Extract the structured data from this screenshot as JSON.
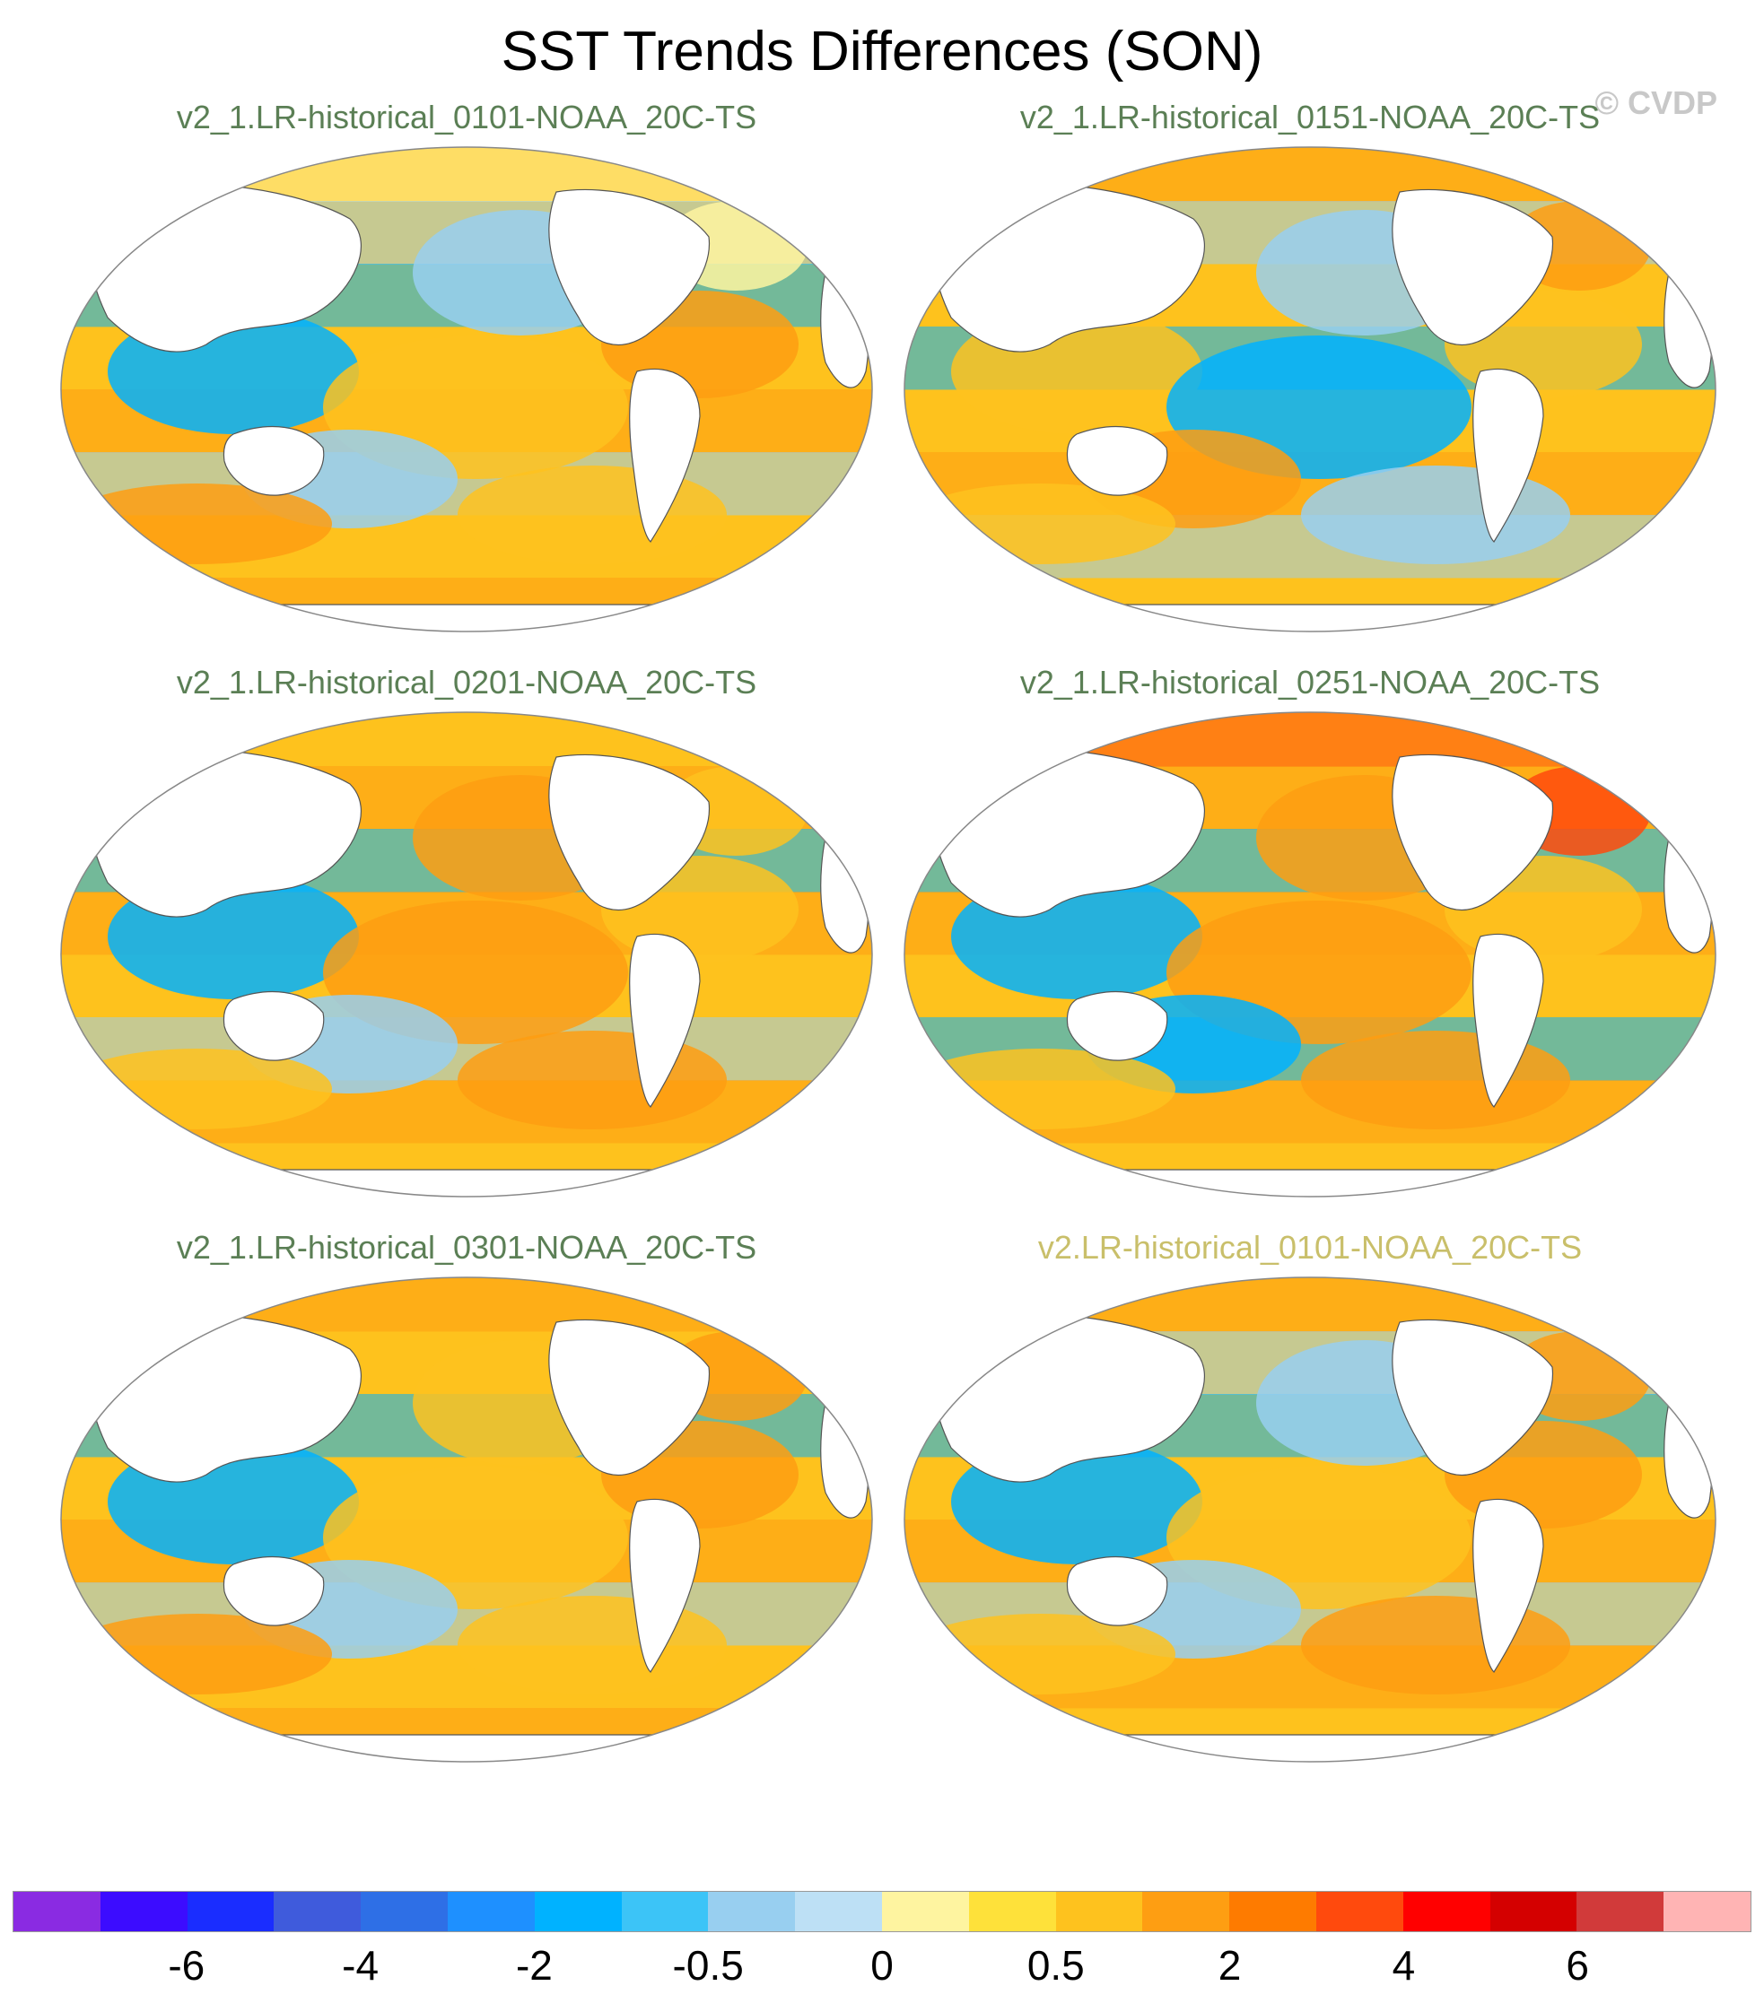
{
  "title": "SST Trends Differences (SON)",
  "credit": "© CVDP",
  "panels": [
    {
      "label": "v2_1.LR-historical_0101-NOAA_20C-TS",
      "label_color": "#5b7f55",
      "pattern": [
        0.4,
        -0.5,
        -2,
        0.5,
        2,
        -0.5,
        0.5,
        2
      ]
    },
    {
      "label": "v2_1.LR-historical_0151-NOAA_20C-TS",
      "label_color": "#5b7f55",
      "pattern": [
        2,
        -0.5,
        0.5,
        -2,
        0.5,
        2,
        -0.5,
        0.5
      ]
    },
    {
      "label": "v2_1.LR-historical_0201-NOAA_20C-TS",
      "label_color": "#5b7f55",
      "pattern": [
        0.5,
        2,
        -2,
        2,
        0.5,
        -0.5,
        2,
        0.5
      ]
    },
    {
      "label": "v2_1.LR-historical_0251-NOAA_20C-TS",
      "label_color": "#5b7f55",
      "pattern": [
        4,
        2,
        -2,
        2,
        0.5,
        -2,
        2,
        0.5
      ]
    },
    {
      "label": "v2_1.LR-historical_0301-NOAA_20C-TS",
      "label_color": "#5b7f55",
      "pattern": [
        2,
        0.5,
        -2,
        0.5,
        2,
        -0.5,
        0.5,
        2
      ]
    },
    {
      "label": "v2.LR-historical_0101-NOAA_20C-TS",
      "label_color": "#c9bf6a",
      "pattern": [
        2,
        -0.5,
        -2,
        0.5,
        2,
        -0.5,
        2,
        0.5
      ]
    }
  ],
  "colorbar": {
    "colors": [
      "#8a2be2",
      "#3c0cff",
      "#1a2dff",
      "#3f5bdc",
      "#2e6fe6",
      "#1e90ff",
      "#00b2ff",
      "#3cc4f7",
      "#98cff0",
      "#bde0f5",
      "#fef4a0",
      "#fee13a",
      "#fec21e",
      "#fe9e12",
      "#fe7b00",
      "#ff4a0d",
      "#ff0000",
      "#d40000",
      "#d13a3a",
      "#ffb4b4"
    ],
    "tick_labels": [
      "-6",
      "-4",
      "-2",
      "-0.5",
      "0",
      "0.5",
      "2",
      "4",
      "6"
    ]
  }
}
